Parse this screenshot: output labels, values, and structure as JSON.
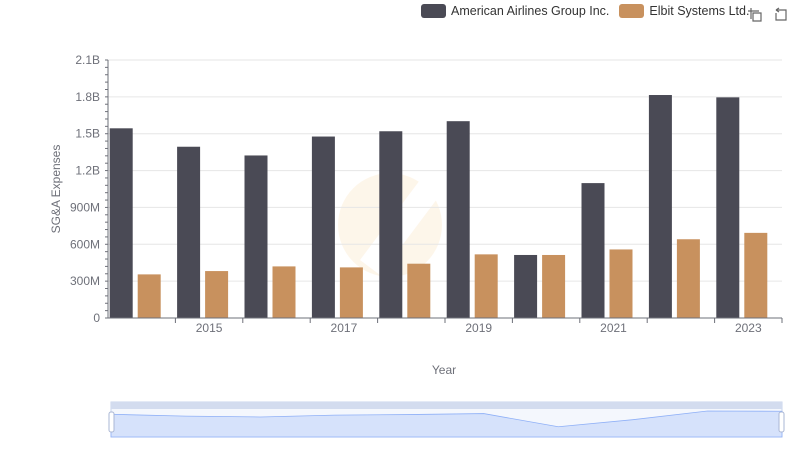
{
  "legend": {
    "series_a_label": "American Airlines Group Inc.",
    "series_b_label": "Elbit Systems Ltd."
  },
  "toolbox": {
    "zoom_icon": "zoom-select-icon",
    "restore_icon": "restore-icon"
  },
  "colors": {
    "series_a": "#4a4a55",
    "series_b": "#c8915e",
    "grid": "#e6e6e6",
    "axis": "#6e7079",
    "slider_fill": "#d6e2fb",
    "slider_border": "#c9d4ec"
  },
  "chart_data": {
    "type": "bar",
    "xlabel": "Year",
    "ylabel": "SG&A Expenses",
    "categories": [
      "2014",
      "2015",
      "2016",
      "2017",
      "2018",
      "2019",
      "2020",
      "2021",
      "2022",
      "2023"
    ],
    "x_tick_labels": [
      "2015",
      "2017",
      "2019",
      "2021",
      "2023"
    ],
    "y_tick_labels": [
      "0",
      "300M",
      "600M",
      "900M",
      "1.2B",
      "1.5B",
      "1.8B",
      "2.1B"
    ],
    "ylim": [
      0,
      2100000000
    ],
    "grid": true,
    "legend_position": "top-right",
    "series": [
      {
        "name": "American Airlines Group Inc.",
        "values": [
          1544000000,
          1394000000,
          1323000000,
          1477000000,
          1520000000,
          1602000000,
          513000000,
          1098000000,
          1815000000,
          1796000000
        ]
      },
      {
        "name": "Elbit Systems Ltd.",
        "values": [
          355000000,
          382000000,
          420000000,
          412000000,
          442000000,
          518000000,
          513000000,
          558000000,
          641000000,
          693000000
        ]
      }
    ]
  }
}
